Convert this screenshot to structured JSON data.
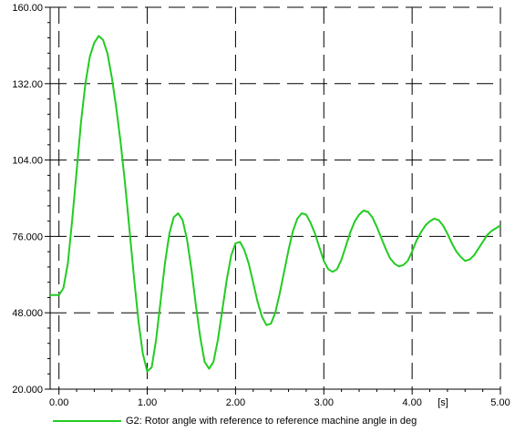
{
  "chart_data": {
    "type": "line",
    "xlim": [
      -0.1,
      5.0
    ],
    "ylim": [
      20.0,
      160.0
    ],
    "x_ticks": [
      0,
      1,
      2,
      3,
      4,
      5
    ],
    "x_tick_labels": [
      "0.00",
      "1.00",
      "2.00",
      "3.00",
      "4.00",
      "5.00"
    ],
    "x_unit_label": "[s]",
    "x_unit_at": 4.35,
    "y_ticks": [
      20,
      48,
      76,
      104,
      132,
      160
    ],
    "y_tick_labels": [
      "20.000",
      "48.000",
      "76.000",
      "104.00",
      "132.00",
      "160.00"
    ],
    "grid": true,
    "legend_position": "bottom-left",
    "series": [
      {
        "name": "G2: Rotor angle with reference to reference machine angle in deg",
        "color": "#22cc22",
        "points": [
          [
            -0.1,
            54.5
          ],
          [
            0.0,
            54.5
          ],
          [
            0.05,
            57
          ],
          [
            0.1,
            66
          ],
          [
            0.15,
            82
          ],
          [
            0.2,
            100
          ],
          [
            0.25,
            118
          ],
          [
            0.3,
            132
          ],
          [
            0.35,
            142
          ],
          [
            0.4,
            147
          ],
          [
            0.45,
            149.5
          ],
          [
            0.5,
            148
          ],
          [
            0.55,
            143
          ],
          [
            0.6,
            134
          ],
          [
            0.65,
            123
          ],
          [
            0.7,
            110
          ],
          [
            0.75,
            95
          ],
          [
            0.8,
            78
          ],
          [
            0.85,
            61
          ],
          [
            0.9,
            45
          ],
          [
            0.95,
            33
          ],
          [
            1.0,
            26.5
          ],
          [
            1.05,
            28
          ],
          [
            1.1,
            38
          ],
          [
            1.15,
            52
          ],
          [
            1.2,
            66
          ],
          [
            1.25,
            77
          ],
          [
            1.3,
            83
          ],
          [
            1.35,
            84.5
          ],
          [
            1.4,
            82
          ],
          [
            1.45,
            75
          ],
          [
            1.5,
            64
          ],
          [
            1.55,
            51
          ],
          [
            1.6,
            39
          ],
          [
            1.65,
            30
          ],
          [
            1.7,
            27.5
          ],
          [
            1.75,
            30
          ],
          [
            1.8,
            38
          ],
          [
            1.85,
            49
          ],
          [
            1.9,
            60
          ],
          [
            1.95,
            69
          ],
          [
            2.0,
            73.5
          ],
          [
            2.05,
            74
          ],
          [
            2.1,
            71
          ],
          [
            2.15,
            66
          ],
          [
            2.2,
            59
          ],
          [
            2.25,
            52
          ],
          [
            2.3,
            46.5
          ],
          [
            2.35,
            43.5
          ],
          [
            2.4,
            44
          ],
          [
            2.45,
            48
          ],
          [
            2.5,
            55
          ],
          [
            2.55,
            63
          ],
          [
            2.6,
            71
          ],
          [
            2.65,
            78
          ],
          [
            2.7,
            82.5
          ],
          [
            2.75,
            84.5
          ],
          [
            2.8,
            84
          ],
          [
            2.85,
            81
          ],
          [
            2.9,
            77
          ],
          [
            2.95,
            72
          ],
          [
            3.0,
            67
          ],
          [
            3.05,
            64
          ],
          [
            3.1,
            63
          ],
          [
            3.15,
            64
          ],
          [
            3.2,
            67.5
          ],
          [
            3.25,
            72.5
          ],
          [
            3.3,
            77.5
          ],
          [
            3.35,
            81.5
          ],
          [
            3.4,
            84
          ],
          [
            3.45,
            85.5
          ],
          [
            3.5,
            85
          ],
          [
            3.55,
            83
          ],
          [
            3.6,
            79.5
          ],
          [
            3.65,
            75.5
          ],
          [
            3.7,
            71.5
          ],
          [
            3.75,
            68
          ],
          [
            3.8,
            66
          ],
          [
            3.85,
            65
          ],
          [
            3.9,
            65.5
          ],
          [
            3.95,
            67
          ],
          [
            4.0,
            70.5
          ],
          [
            4.05,
            74.5
          ],
          [
            4.1,
            77.5
          ],
          [
            4.15,
            80
          ],
          [
            4.2,
            81.5
          ],
          [
            4.25,
            82.5
          ],
          [
            4.3,
            82
          ],
          [
            4.35,
            80
          ],
          [
            4.4,
            77
          ],
          [
            4.45,
            73.5
          ],
          [
            4.5,
            70.5
          ],
          [
            4.55,
            68.5
          ],
          [
            4.6,
            67
          ],
          [
            4.65,
            67.5
          ],
          [
            4.7,
            69
          ],
          [
            4.75,
            71.5
          ],
          [
            4.8,
            74
          ],
          [
            4.85,
            76.5
          ],
          [
            4.9,
            78
          ],
          [
            4.95,
            79
          ],
          [
            5.0,
            80
          ]
        ]
      }
    ]
  }
}
